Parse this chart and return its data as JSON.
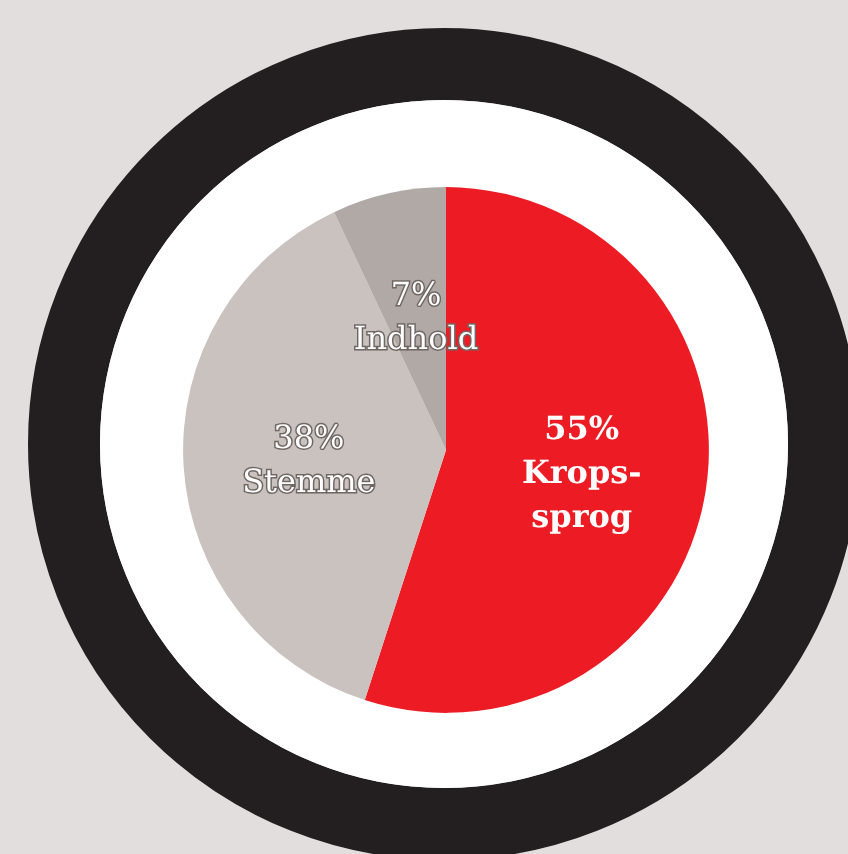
{
  "chart_data": {
    "type": "pie",
    "categories": [
      "Krops-\nsprog",
      "Stemme",
      "Indhold"
    ],
    "values": [
      55,
      38,
      7
    ],
    "colors": [
      "#ed1c24",
      "#c9c2bf",
      "#b1a9a5"
    ],
    "value_labels": [
      "55%",
      "38%",
      "7%"
    ]
  }
}
